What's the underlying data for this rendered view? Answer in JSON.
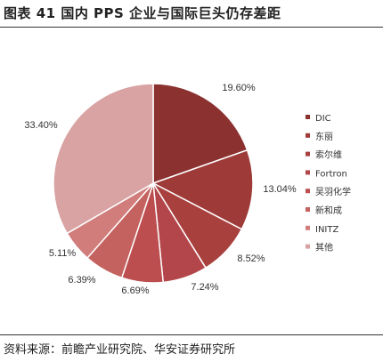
{
  "figure": {
    "title": "图表 41  国内 PPS 企业与国际巨头仍存差距",
    "source": "资料来源：前瞻产业研究院、华安证券研究所"
  },
  "chart_data": {
    "type": "pie",
    "labels": [
      "DIC",
      "东丽",
      "索尔维",
      "Fortron",
      "吴羽化学",
      "新和成",
      "INITZ",
      "其他"
    ],
    "values": [
      19.6,
      13.04,
      8.52,
      7.24,
      6.69,
      6.39,
      5.11,
      33.4
    ],
    "value_labels": [
      "19.60%",
      "13.04%",
      "8.52%",
      "7.24%",
      "6.69%",
      "6.39%",
      "5.11%",
      "33.40%"
    ],
    "colors": [
      "#8b3230",
      "#9e3b39",
      "#a8403d",
      "#b3464a",
      "#bc4e50",
      "#c4625f",
      "#d07d7b",
      "#d9a3a3"
    ],
    "legend_position": "right"
  }
}
